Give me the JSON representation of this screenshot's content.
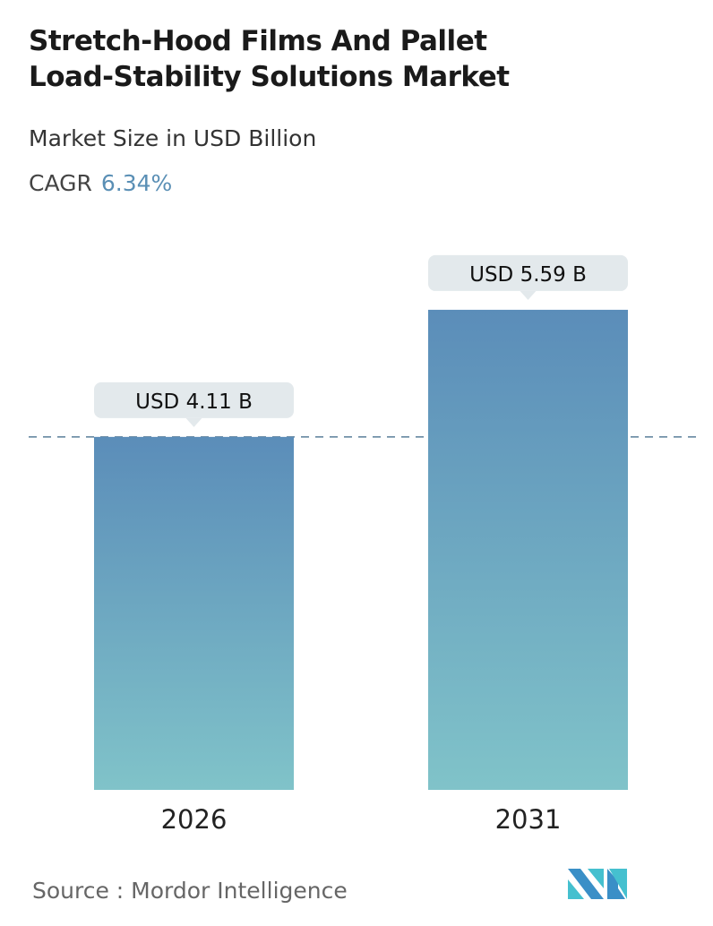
{
  "title_line1": "Stretch-Hood Films And Pallet",
  "title_line2": "Load-Stability Solutions Market",
  "subtitle": "Market Size in USD Billion",
  "cagr_label": "CAGR",
  "cagr_value": "6.34%",
  "source": "Source :  Mordor Intelligence",
  "colors": {
    "bar_top": "#5b8db9",
    "bar_bottom": "#80c3c9",
    "label_bg": "#e3e9ec",
    "cagr": "#5a8fb5",
    "dashed_line": "#5b7f99"
  },
  "chart_data": {
    "type": "bar",
    "categories": [
      "2026",
      "2031"
    ],
    "values": [
      4.11,
      5.59
    ],
    "data_labels": [
      "USD 4.11 B",
      "USD 5.59 B"
    ],
    "ylabel": "Market Size in USD Billion",
    "reference_line": 4.11,
    "grid": false
  }
}
